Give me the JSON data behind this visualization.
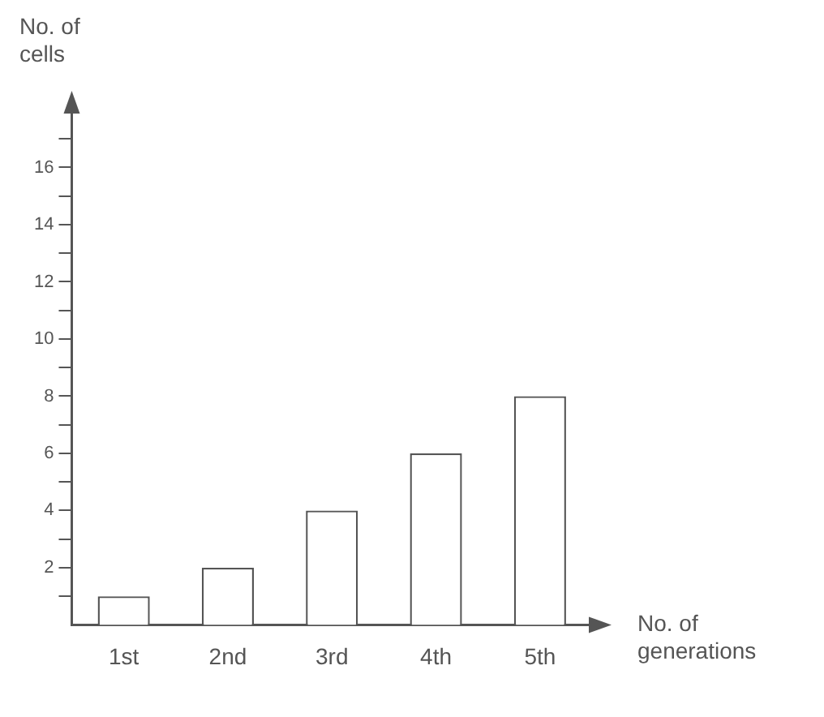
{
  "chart_data": {
    "type": "bar",
    "xlabel": "No. of generations",
    "ylabel": "No. of cells",
    "categories": [
      "1st",
      "2nd",
      "3rd",
      "4th",
      "5th"
    ],
    "values": [
      1,
      2,
      4,
      6,
      8
    ],
    "color": "#ffffff",
    "ylim": [
      0,
      18
    ],
    "yticks": [
      {
        "value": 1,
        "label": null
      },
      2,
      {
        "value": 3,
        "label": null
      },
      4,
      {
        "value": 5,
        "label": null
      },
      6,
      {
        "value": 7,
        "label": null
      },
      8,
      {
        "value": 9,
        "label": null
      },
      10,
      {
        "value": 11,
        "label": null
      },
      12,
      {
        "value": 13,
        "label": null
      },
      14,
      {
        "value": 15,
        "label": null
      },
      16,
      {
        "value": 17,
        "label": null
      }
    ],
    "legend": false
  }
}
